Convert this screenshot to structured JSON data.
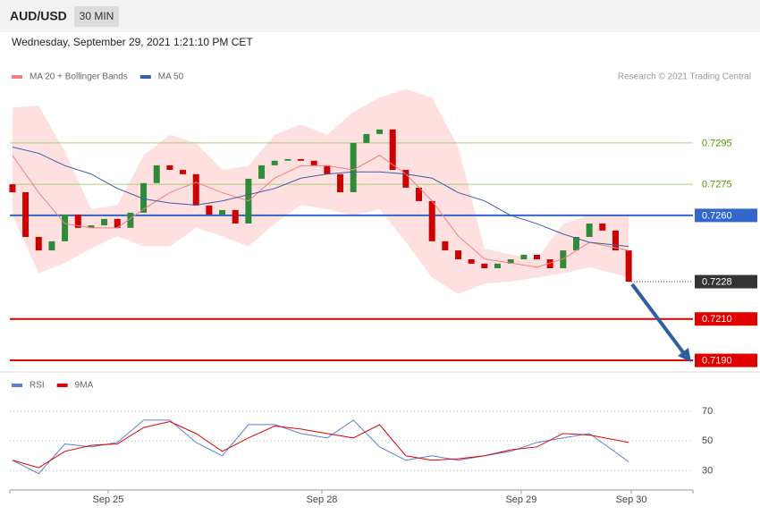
{
  "header": {
    "symbol": "AUD/USD",
    "interval": "30 MIN",
    "timestamp": "Wednesday, September 29, 2021 1:21:10 PM CET"
  },
  "chart_data": [
    {
      "type": "candlestick",
      "credit": "Research © 2021 Trading Central",
      "up_color": "#2e8b3a",
      "down_color": "#cc0000",
      "open": [
        0.7275,
        0.72712,
        0.72496,
        0.72431,
        0.72475,
        0.72604,
        0.7254,
        0.72552,
        0.72583,
        0.7254,
        0.72613,
        0.72756,
        0.72842,
        0.7282,
        0.72799,
        0.72648,
        0.72604,
        0.72626,
        0.72561,
        0.72777,
        0.72842,
        0.72864,
        0.72872,
        0.72864,
        0.72842,
        0.72799,
        0.72712,
        0.7295,
        0.72993,
        0.73015,
        0.7282,
        0.72734,
        0.72669,
        0.72475,
        0.72431,
        0.72388,
        0.72367,
        0.72345,
        0.72367,
        0.72388,
        0.7241,
        0.72388,
        0.72345,
        0.72431,
        0.72496,
        0.72561,
        0.72527,
        0.72431
      ],
      "close": [
        0.72712,
        0.72496,
        0.72431,
        0.72475,
        0.72604,
        0.7254,
        0.72552,
        0.72583,
        0.7254,
        0.72613,
        0.72756,
        0.72842,
        0.7282,
        0.72799,
        0.72648,
        0.72604,
        0.72626,
        0.72561,
        0.72777,
        0.72842,
        0.72864,
        0.72872,
        0.72864,
        0.72842,
        0.72799,
        0.72712,
        0.7295,
        0.72993,
        0.73015,
        0.7282,
        0.72734,
        0.72669,
        0.72475,
        0.72431,
        0.72388,
        0.72367,
        0.72345,
        0.72367,
        0.72388,
        0.7241,
        0.72388,
        0.72345,
        0.72431,
        0.72496,
        0.72561,
        0.72527,
        0.72431,
        0.7228
      ],
      "xlim": [
        -0.2,
        51.9
      ],
      "ylim": [
        0.7187,
        0.7323
      ],
      "overlay_x": [
        0,
        2,
        4,
        6,
        8,
        10,
        12,
        14,
        16,
        18,
        20,
        22,
        24,
        26,
        28,
        30,
        32,
        34,
        36,
        38,
        40,
        42,
        44,
        47
      ],
      "series": [
        {
          "name": "MA 20 + Bollinger Bands",
          "color": "#f08080",
          "band_color": "#ffd6d6",
          "values": [
            0.7289,
            0.7271,
            0.7256,
            0.7254,
            0.7254,
            0.7263,
            0.7271,
            0.7276,
            0.7271,
            0.7267,
            0.7278,
            0.7284,
            0.7284,
            0.7282,
            0.7289,
            0.728,
            0.7267,
            0.725,
            0.7239,
            0.7237,
            0.7235,
            0.7239,
            0.7247,
            0.7243
          ],
          "band_upper": [
            0.7312,
            0.7313,
            0.7291,
            0.7263,
            0.7265,
            0.7289,
            0.7299,
            0.7295,
            0.7282,
            0.7284,
            0.7299,
            0.7304,
            0.7299,
            0.731,
            0.7317,
            0.7321,
            0.7317,
            0.7293,
            0.7244,
            0.7241,
            0.7239,
            0.7256,
            0.726,
            0.726
          ],
          "band_lower": [
            0.726,
            0.7232,
            0.7237,
            0.7244,
            0.725,
            0.7245,
            0.7245,
            0.7254,
            0.725,
            0.7245,
            0.7256,
            0.7265,
            0.7263,
            0.726,
            0.7263,
            0.7247,
            0.723,
            0.7222,
            0.7227,
            0.7228,
            0.723,
            0.7232,
            0.7235,
            0.723
          ]
        },
        {
          "name": "MA 50",
          "color": "#3a5da8",
          "values": [
            0.7293,
            0.729,
            0.7284,
            0.728,
            0.7273,
            0.7268,
            0.7266,
            0.7265,
            0.7267,
            0.727,
            0.7273,
            0.7278,
            0.728,
            0.7281,
            0.7281,
            0.728,
            0.7278,
            0.7271,
            0.7267,
            0.726,
            0.7256,
            0.7251,
            0.7247,
            0.7245
          ]
        }
      ],
      "levels": [
        {
          "value": 0.7295,
          "label": "0.7295",
          "color": "#9ccc70",
          "text_color": "#4d9a00",
          "style": "thin"
        },
        {
          "value": 0.7275,
          "label": "0.7275",
          "color": "#9ccc70",
          "text_color": "#4d9a00",
          "style": "thin"
        },
        {
          "value": 0.726,
          "label": "0.7260",
          "color": "#3366cc",
          "text_color": "#ffffff",
          "style": "box"
        },
        {
          "value": 0.7228,
          "label": "0.7228",
          "color": "#333333",
          "text_color": "#ffffff",
          "style": "dotted"
        },
        {
          "value": 0.721,
          "label": "0.7210",
          "color": "#e00000",
          "text_color": "#ffffff",
          "style": "box"
        },
        {
          "value": 0.719,
          "label": "0.7190",
          "color": "#e00000",
          "text_color": "#ffffff",
          "style": "box"
        }
      ]
    },
    {
      "type": "line",
      "xlim": [
        -0.2,
        51.9
      ],
      "ylim": [
        17,
        82
      ],
      "yticks": [
        70,
        50,
        30
      ],
      "grid": true,
      "x": [
        0,
        2,
        4,
        6,
        8,
        10,
        12,
        14,
        16,
        18,
        20,
        22,
        24,
        26,
        28,
        30,
        32,
        34,
        36,
        38,
        40,
        42,
        44,
        47
      ],
      "xticks": [
        {
          "value": 7.3,
          "label": "Sep 25"
        },
        {
          "value": 23.6,
          "label": "Sep 28"
        },
        {
          "value": 38.8,
          "label": "Sep 29"
        },
        {
          "value": 47.2,
          "label": "Sep 30"
        }
      ],
      "series": [
        {
          "name": "RSI",
          "color": "#5b7fd6",
          "values": [
            37,
            28,
            48,
            46,
            49,
            64,
            64,
            49,
            40,
            61,
            61,
            55,
            52,
            64,
            46,
            37,
            40,
            37,
            40,
            43,
            49,
            52,
            55,
            36
          ]
        },
        {
          "name": "9MA",
          "color": "#e00000",
          "values": [
            37,
            32,
            43,
            47,
            48,
            59,
            63,
            55,
            43,
            52,
            60,
            58,
            55,
            52,
            61,
            40,
            37,
            38,
            40,
            44,
            46,
            55,
            54,
            49
          ]
        }
      ]
    }
  ]
}
